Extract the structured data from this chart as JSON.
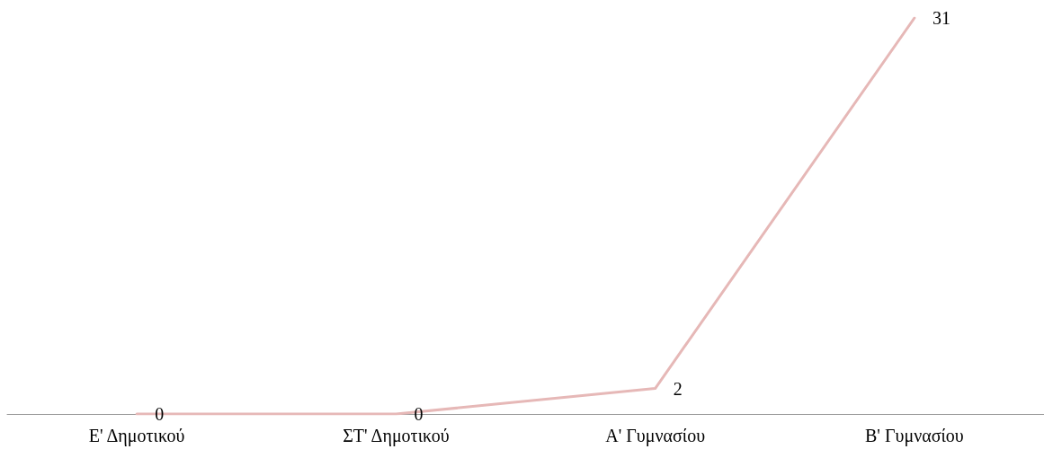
{
  "chart_data": {
    "type": "line",
    "categories": [
      "Ε' Δημοτικού",
      "ΣΤ' Δημοτικού",
      "Α' Γυμνασίου",
      "Β' Γυμνασίου"
    ],
    "series": [
      {
        "color": "#e6b8b7",
        "values": [
          0,
          0,
          2,
          31
        ]
      }
    ],
    "data_labels": true,
    "grid": false,
    "marker": "none",
    "line_style": "solid"
  }
}
